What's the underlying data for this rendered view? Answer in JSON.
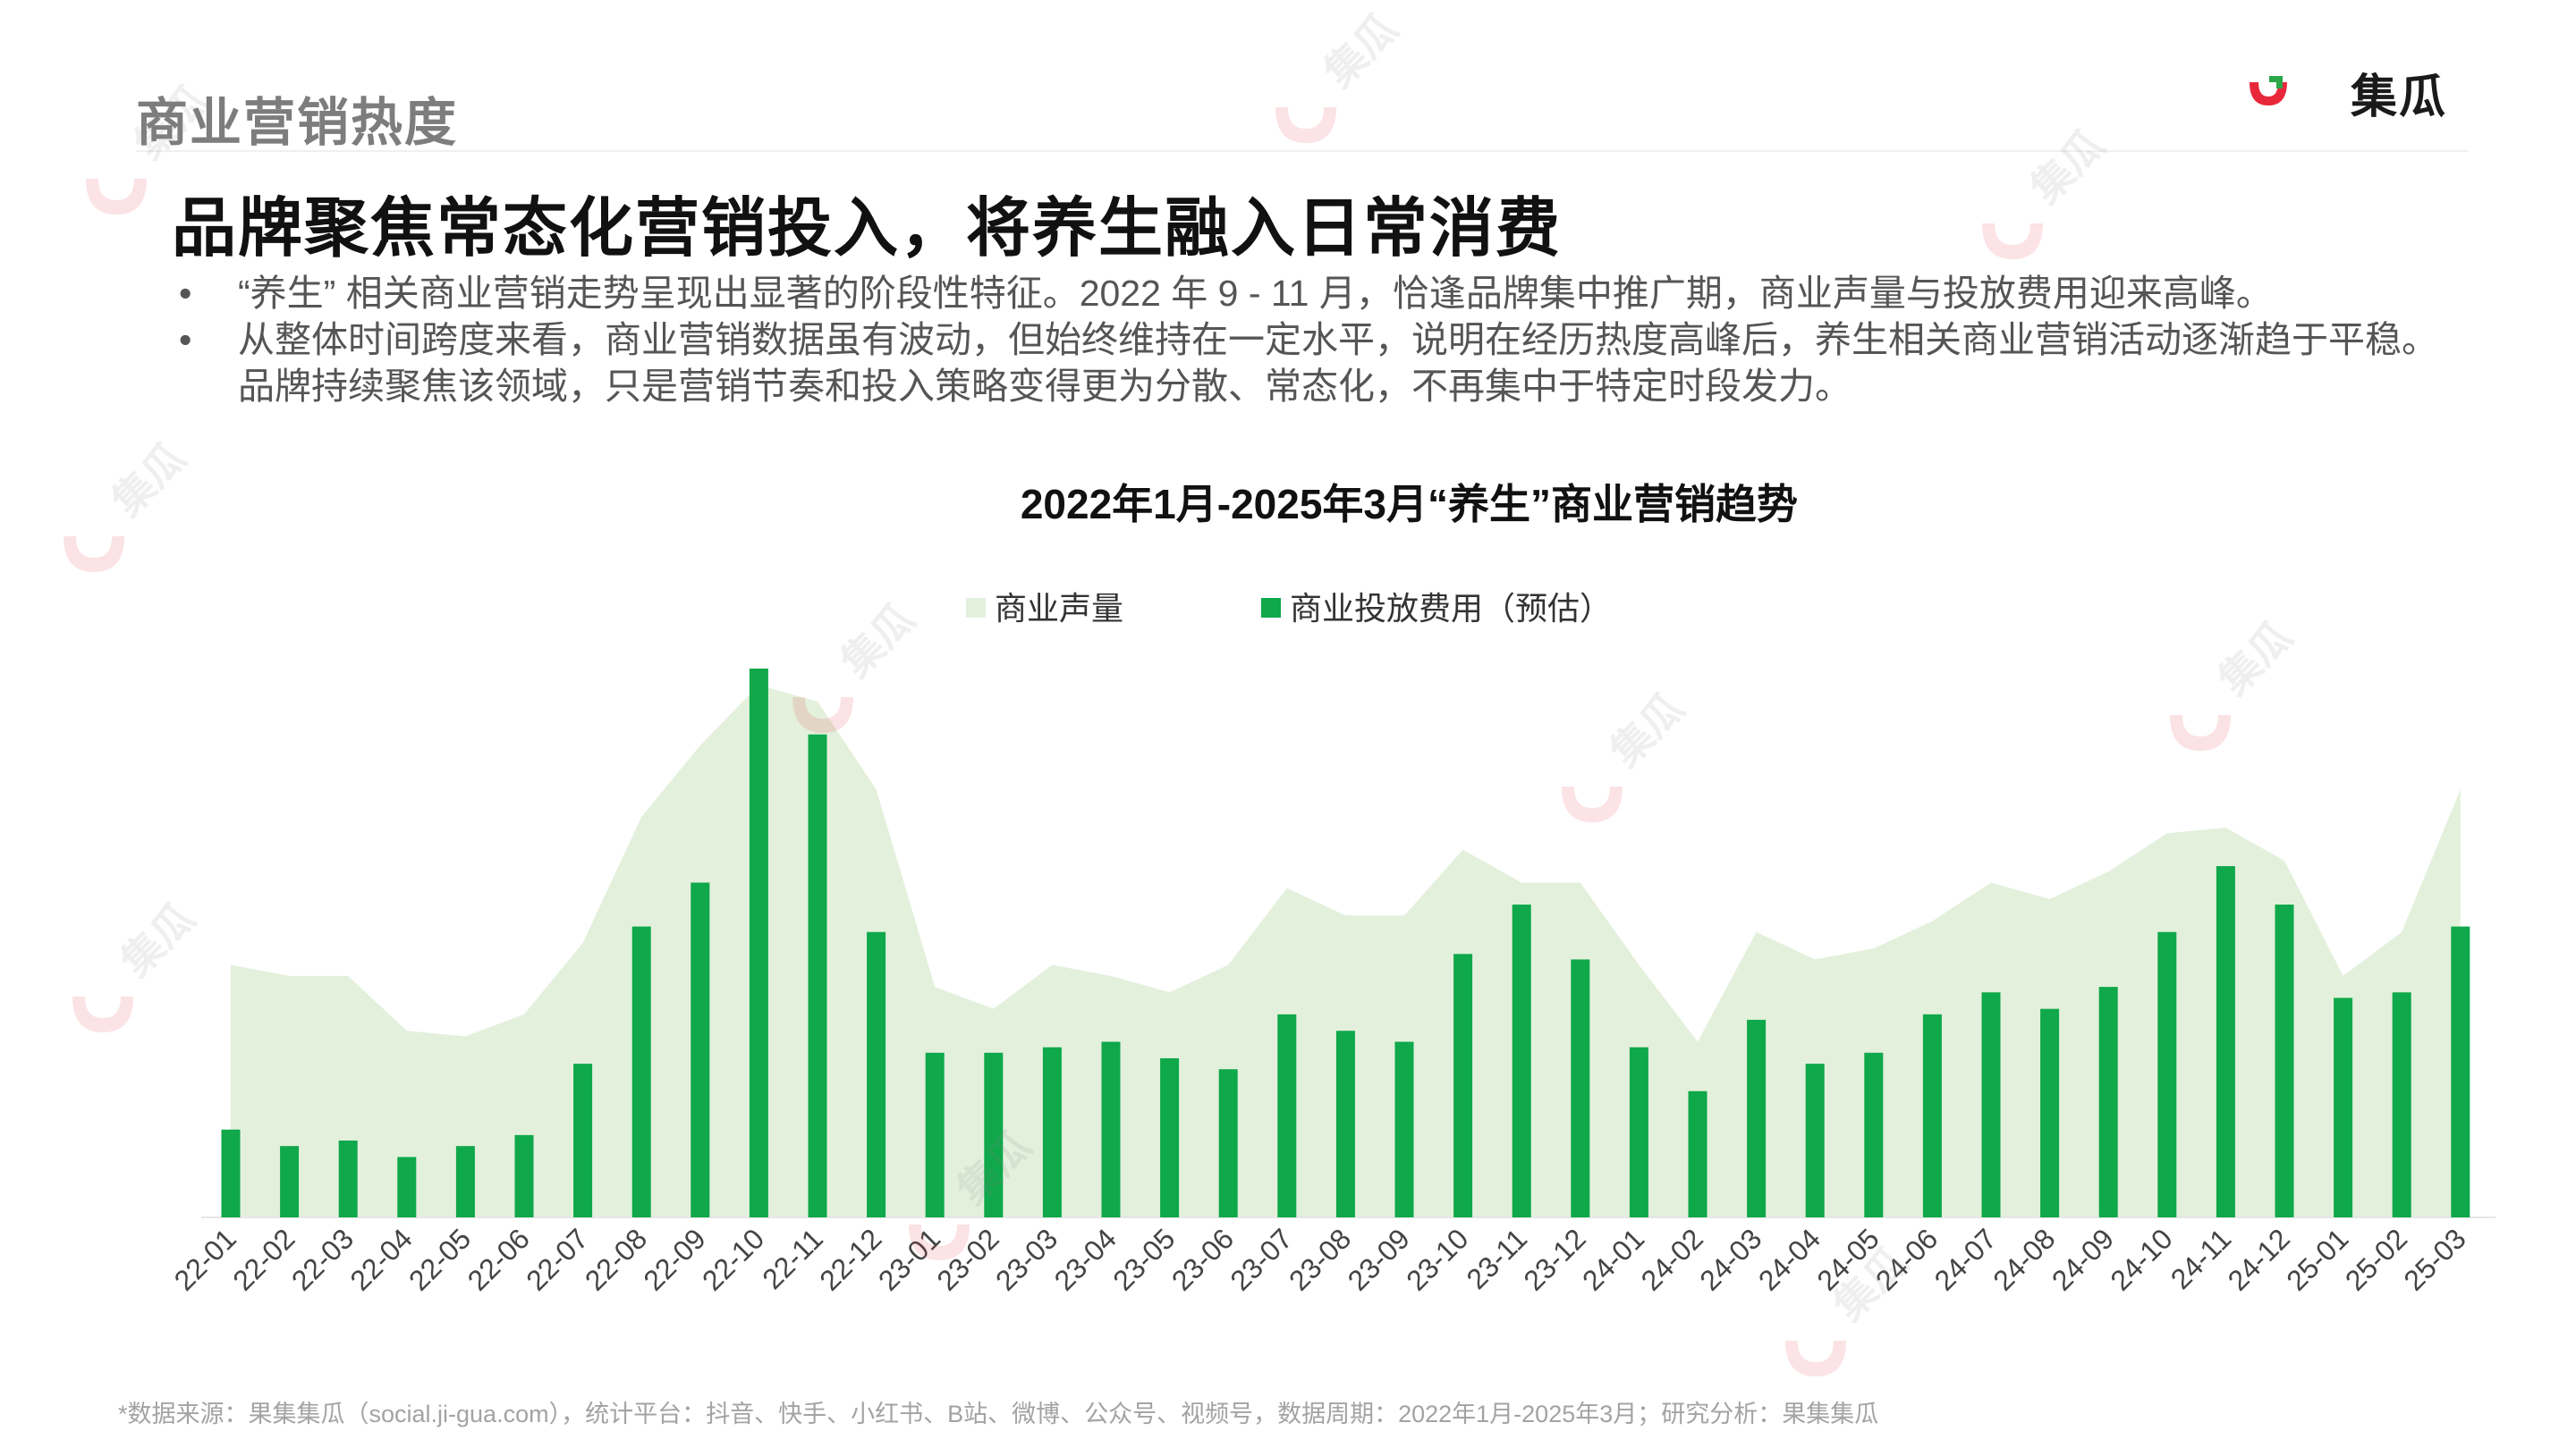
{
  "section_title": "商业营销热度",
  "brand": {
    "name": "集瓜",
    "colors": {
      "red": "#e8283a",
      "green": "#2ba84a"
    }
  },
  "headline": "品牌聚焦常态化营销投入，将养生融入日常消费",
  "bullets": [
    "“养生” 相关商业营销走势呈现出显著的阶段性特征。2022 年 9 - 11 月，恰逢品牌集中推广期，商业声量与投放费用迎来高峰。",
    "从整体时间跨度来看，商业营销数据虽有波动，但始终维持在一定水平，说明在经历热度高峰后，养生相关商业营销活动逐渐趋于平稳。",
    "品牌持续聚焦该领域，只是营销节奏和投入策略变得更为分散、常态化，不再集中于特定时段发力。"
  ],
  "bullet_symbol": "•",
  "footnote": "*数据来源：果集集瓜（social.ji-gua.com），统计平台：抖音、快手、小红书、B站、微博、公众号、视频号，数据周期：2022年1月-2025年3月；研究分析：果集集瓜",
  "chart_data": {
    "type": "bar",
    "title": "2022年1月-2025年3月“养生”商业营销趋势",
    "legend_position": "top",
    "grid": false,
    "categories": [
      "22-01",
      "22-02",
      "22-03",
      "22-04",
      "22-05",
      "22-06",
      "22-07",
      "22-08",
      "22-09",
      "22-10",
      "22-11",
      "22-12",
      "23-01",
      "23-02",
      "23-03",
      "23-04",
      "23-05",
      "23-06",
      "23-07",
      "23-08",
      "23-09",
      "23-10",
      "23-11",
      "23-12",
      "24-01",
      "24-02",
      "24-03",
      "24-04",
      "24-05",
      "24-06",
      "24-07",
      "24-08",
      "24-09",
      "24-10",
      "24-11",
      "24-12",
      "25-01",
      "25-02",
      "25-03"
    ],
    "ylim": [
      0,
      100
    ],
    "series": [
      {
        "name": "商业声量",
        "kind": "area",
        "color": "#e3f0dc",
        "values": [
          46,
          44,
          44,
          34,
          33,
          37,
          50,
          73,
          86,
          97,
          94,
          78,
          42,
          38,
          46,
          44,
          41,
          46,
          60,
          55,
          55,
          67,
          61,
          61,
          46,
          32,
          52,
          47,
          49,
          54,
          61,
          58,
          63,
          70,
          71,
          65,
          44,
          52,
          78
        ]
      },
      {
        "name": "商业投放费用（预估）",
        "kind": "bar",
        "color": "#0fa84a",
        "values": [
          16,
          13,
          14,
          11,
          13,
          15,
          28,
          53,
          61,
          100,
          88,
          52,
          30,
          30,
          31,
          32,
          29,
          27,
          37,
          34,
          32,
          48,
          57,
          47,
          31,
          23,
          36,
          28,
          30,
          37,
          41,
          38,
          42,
          52,
          64,
          57,
          40,
          41,
          53
        ]
      }
    ]
  },
  "watermark_text": "集瓜"
}
